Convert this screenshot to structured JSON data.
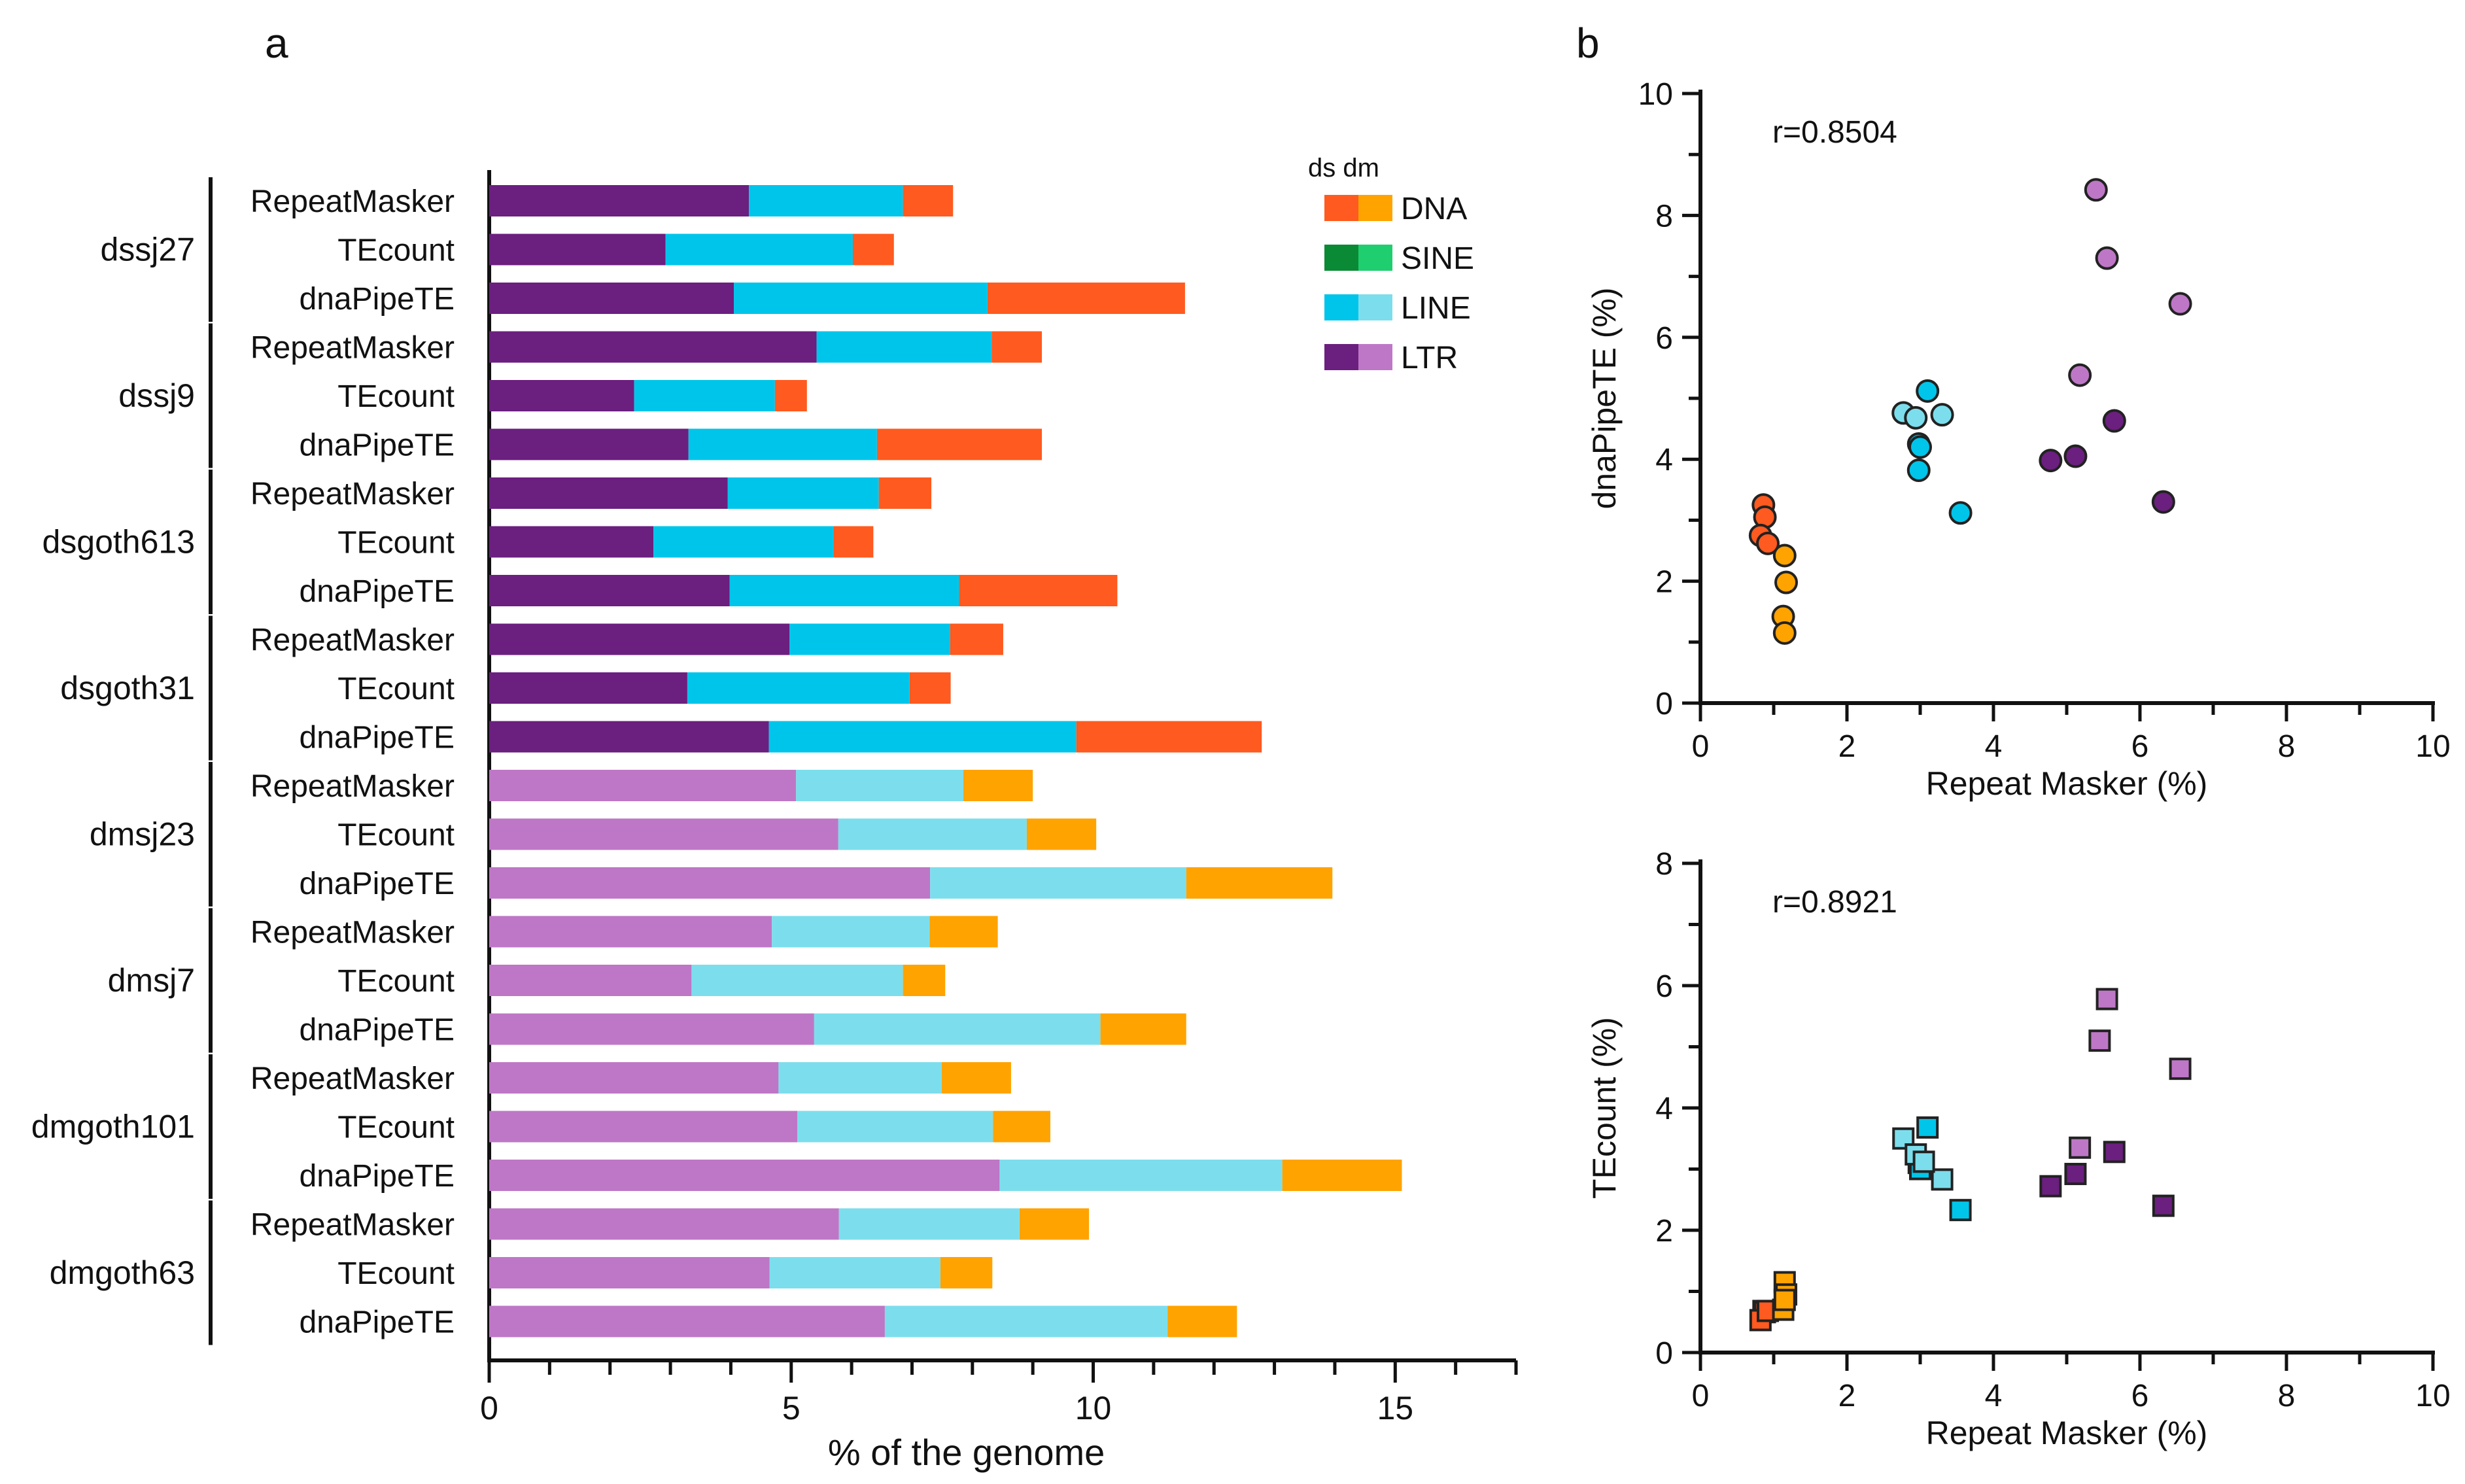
{
  "panels": {
    "a": "a",
    "b": "b"
  },
  "colors": {
    "ds": {
      "LTR": "#6b1f7f",
      "LINE": "#00c5ea",
      "SINE": "#0a8a35",
      "DNA": "#ff5a1f"
    },
    "dm": {
      "LTR": "#be77c6",
      "LINE": "#7cdeec",
      "SINE": "#1fce6e",
      "DNA": "#ffa300"
    }
  },
  "legend": {
    "header": "ds dm",
    "entries": [
      {
        "key": "DNA",
        "label": "DNA"
      },
      {
        "key": "SINE",
        "label": "SINE"
      },
      {
        "key": "LINE",
        "label": "LINE"
      },
      {
        "key": "LTR",
        "label": "LTR"
      }
    ]
  },
  "chart_data": [
    {
      "type": "bar",
      "orientation": "horizontal-stacked",
      "xlabel": "% of the genome",
      "xlim": [
        0,
        17
      ],
      "xticks": [
        0,
        5,
        10,
        15
      ],
      "stack_order": [
        "LTR",
        "LINE",
        "DNA"
      ],
      "groups": [
        {
          "label": "dssj27",
          "species": "ds",
          "rows": [
            {
              "method": "RepeatMasker",
              "LTR": 4.3,
              "LINE": 2.55,
              "DNA": 0.83
            },
            {
              "method": "TEcount",
              "LTR": 2.92,
              "LINE": 3.1,
              "DNA": 0.68
            },
            {
              "method": "dnaPipeTE",
              "LTR": 4.05,
              "LINE": 4.2,
              "DNA": 3.27
            }
          ]
        },
        {
          "label": "dssj9",
          "species": "ds",
          "rows": [
            {
              "method": "RepeatMasker",
              "LTR": 5.42,
              "LINE": 2.9,
              "DNA": 0.83
            },
            {
              "method": "TEcount",
              "LTR": 2.4,
              "LINE": 2.33,
              "DNA": 0.53
            },
            {
              "method": "dnaPipeTE",
              "LTR": 3.3,
              "LINE": 3.12,
              "DNA": 2.73
            }
          ]
        },
        {
          "label": "dsgoth613",
          "species": "ds",
          "rows": [
            {
              "method": "RepeatMasker",
              "LTR": 3.95,
              "LINE": 2.5,
              "DNA": 0.87
            },
            {
              "method": "TEcount",
              "LTR": 2.72,
              "LINE": 2.98,
              "DNA": 0.66
            },
            {
              "method": "dnaPipeTE",
              "LTR": 3.98,
              "LINE": 3.8,
              "DNA": 2.62
            }
          ]
        },
        {
          "label": "dsgoth31",
          "species": "ds",
          "rows": [
            {
              "method": "RepeatMasker",
              "LTR": 4.97,
              "LINE": 2.66,
              "DNA": 0.88
            },
            {
              "method": "TEcount",
              "LTR": 3.28,
              "LINE": 3.68,
              "DNA": 0.68
            },
            {
              "method": "dnaPipeTE",
              "LTR": 4.63,
              "LINE": 5.09,
              "DNA": 3.07
            }
          ]
        },
        {
          "label": "dmsj23",
          "species": "dm",
          "rows": [
            {
              "method": "RepeatMasker",
              "LTR": 5.08,
              "LINE": 2.77,
              "DNA": 1.15
            },
            {
              "method": "TEcount",
              "LTR": 5.78,
              "LINE": 3.12,
              "DNA": 1.15
            },
            {
              "method": "dnaPipeTE",
              "LTR": 7.3,
              "LINE": 4.24,
              "DNA": 2.42
            }
          ]
        },
        {
          "label": "dmsj7",
          "species": "dm",
          "rows": [
            {
              "method": "RepeatMasker",
              "LTR": 4.68,
              "LINE": 2.61,
              "DNA": 1.13
            },
            {
              "method": "TEcount",
              "LTR": 3.35,
              "LINE": 3.5,
              "DNA": 0.7
            },
            {
              "method": "dnaPipeTE",
              "LTR": 5.38,
              "LINE": 4.74,
              "DNA": 1.42
            }
          ]
        },
        {
          "label": "dmgoth101",
          "species": "dm",
          "rows": [
            {
              "method": "RepeatMasker",
              "LTR": 4.79,
              "LINE": 2.7,
              "DNA": 1.15
            },
            {
              "method": "TEcount",
              "LTR": 5.1,
              "LINE": 3.24,
              "DNA": 0.95
            },
            {
              "method": "dnaPipeTE",
              "LTR": 8.45,
              "LINE": 4.68,
              "DNA": 1.98
            }
          ]
        },
        {
          "label": "dmgoth63",
          "species": "dm",
          "rows": [
            {
              "method": "RepeatMasker",
              "LTR": 5.79,
              "LINE": 2.99,
              "DNA": 1.15
            },
            {
              "method": "TEcount",
              "LTR": 4.64,
              "LINE": 2.83,
              "DNA": 0.86
            },
            {
              "method": "dnaPipeTE",
              "LTR": 6.55,
              "LINE": 4.68,
              "DNA": 1.15
            }
          ]
        }
      ]
    },
    {
      "type": "scatter",
      "marker": "circle",
      "annotation": "r=0.8504",
      "xlabel": "Repeat Masker (%)",
      "ylabel": "dnaPipeTE (%)",
      "xlim": [
        0,
        10
      ],
      "ylim": [
        0,
        10
      ],
      "xticks": [
        0,
        2,
        4,
        6,
        8,
        10
      ],
      "yticks": [
        0,
        2,
        4,
        6,
        8,
        10
      ],
      "points": [
        {
          "x": 0.86,
          "y": 3.25,
          "species": "ds",
          "te": "DNA"
        },
        {
          "x": 0.88,
          "y": 3.05,
          "species": "ds",
          "te": "DNA"
        },
        {
          "x": 0.82,
          "y": 2.75,
          "species": "ds",
          "te": "DNA"
        },
        {
          "x": 0.92,
          "y": 2.62,
          "species": "ds",
          "te": "DNA"
        },
        {
          "x": 1.15,
          "y": 2.42,
          "species": "dm",
          "te": "DNA"
        },
        {
          "x": 1.17,
          "y": 1.98,
          "species": "dm",
          "te": "DNA"
        },
        {
          "x": 1.13,
          "y": 1.42,
          "species": "dm",
          "te": "DNA"
        },
        {
          "x": 1.15,
          "y": 1.15,
          "species": "dm",
          "te": "DNA"
        },
        {
          "x": 3.1,
          "y": 5.12,
          "species": "ds",
          "te": "LINE"
        },
        {
          "x": 2.98,
          "y": 4.25,
          "species": "ds",
          "te": "LINE"
        },
        {
          "x": 3.0,
          "y": 4.2,
          "species": "ds",
          "te": "LINE"
        },
        {
          "x": 2.98,
          "y": 3.82,
          "species": "ds",
          "te": "LINE"
        },
        {
          "x": 3.55,
          "y": 3.12,
          "species": "ds",
          "te": "LINE"
        },
        {
          "x": 2.77,
          "y": 4.76,
          "species": "dm",
          "te": "LINE"
        },
        {
          "x": 2.94,
          "y": 4.68,
          "species": "dm",
          "te": "LINE"
        },
        {
          "x": 3.3,
          "y": 4.73,
          "species": "dm",
          "te": "LINE"
        },
        {
          "x": 4.78,
          "y": 3.98,
          "species": "ds",
          "te": "LTR"
        },
        {
          "x": 5.12,
          "y": 4.05,
          "species": "ds",
          "te": "LTR"
        },
        {
          "x": 5.65,
          "y": 4.63,
          "species": "ds",
          "te": "LTR"
        },
        {
          "x": 6.32,
          "y": 3.3,
          "species": "ds",
          "te": "LTR"
        },
        {
          "x": 5.4,
          "y": 8.42,
          "species": "dm",
          "te": "LTR"
        },
        {
          "x": 5.55,
          "y": 7.3,
          "species": "dm",
          "te": "LTR"
        },
        {
          "x": 6.55,
          "y": 6.55,
          "species": "dm",
          "te": "LTR"
        },
        {
          "x": 5.18,
          "y": 5.38,
          "species": "dm",
          "te": "LTR"
        }
      ]
    },
    {
      "type": "scatter",
      "marker": "square",
      "annotation": "r=0.8921",
      "xlabel": "Repeat Masker (%)",
      "ylabel": "TEcount (%)",
      "xlim": [
        0,
        10
      ],
      "ylim": [
        0,
        8
      ],
      "xticks": [
        0,
        2,
        4,
        6,
        8,
        10
      ],
      "yticks": [
        0,
        2,
        4,
        6,
        8
      ],
      "points": [
        {
          "x": 0.86,
          "y": 0.68,
          "species": "ds",
          "te": "DNA"
        },
        {
          "x": 0.88,
          "y": 0.66,
          "species": "ds",
          "te": "DNA"
        },
        {
          "x": 0.82,
          "y": 0.53,
          "species": "ds",
          "te": "DNA"
        },
        {
          "x": 0.92,
          "y": 0.68,
          "species": "ds",
          "te": "DNA"
        },
        {
          "x": 1.15,
          "y": 1.15,
          "species": "dm",
          "te": "DNA"
        },
        {
          "x": 1.17,
          "y": 0.95,
          "species": "dm",
          "te": "DNA"
        },
        {
          "x": 1.13,
          "y": 0.7,
          "species": "dm",
          "te": "DNA"
        },
        {
          "x": 1.15,
          "y": 0.86,
          "species": "dm",
          "te": "DNA"
        },
        {
          "x": 3.1,
          "y": 3.68,
          "species": "ds",
          "te": "LINE"
        },
        {
          "x": 2.98,
          "y": 3.1,
          "species": "ds",
          "te": "LINE"
        },
        {
          "x": 3.0,
          "y": 3.0,
          "species": "ds",
          "te": "LINE"
        },
        {
          "x": 3.55,
          "y": 2.33,
          "species": "ds",
          "te": "LINE"
        },
        {
          "x": 2.77,
          "y": 3.5,
          "species": "dm",
          "te": "LINE"
        },
        {
          "x": 3.3,
          "y": 2.83,
          "species": "dm",
          "te": "LINE"
        },
        {
          "x": 2.94,
          "y": 3.24,
          "species": "dm",
          "te": "LINE"
        },
        {
          "x": 3.05,
          "y": 3.12,
          "species": "dm",
          "te": "LINE"
        },
        {
          "x": 4.78,
          "y": 2.72,
          "species": "ds",
          "te": "LTR"
        },
        {
          "x": 5.12,
          "y": 2.92,
          "species": "ds",
          "te": "LTR"
        },
        {
          "x": 5.65,
          "y": 3.28,
          "species": "ds",
          "te": "LTR"
        },
        {
          "x": 6.32,
          "y": 2.4,
          "species": "ds",
          "te": "LTR"
        },
        {
          "x": 5.55,
          "y": 5.78,
          "species": "dm",
          "te": "LTR"
        },
        {
          "x": 5.45,
          "y": 5.1,
          "species": "dm",
          "te": "LTR"
        },
        {
          "x": 6.55,
          "y": 4.64,
          "species": "dm",
          "te": "LTR"
        },
        {
          "x": 5.18,
          "y": 3.35,
          "species": "dm",
          "te": "LTR"
        }
      ]
    }
  ]
}
